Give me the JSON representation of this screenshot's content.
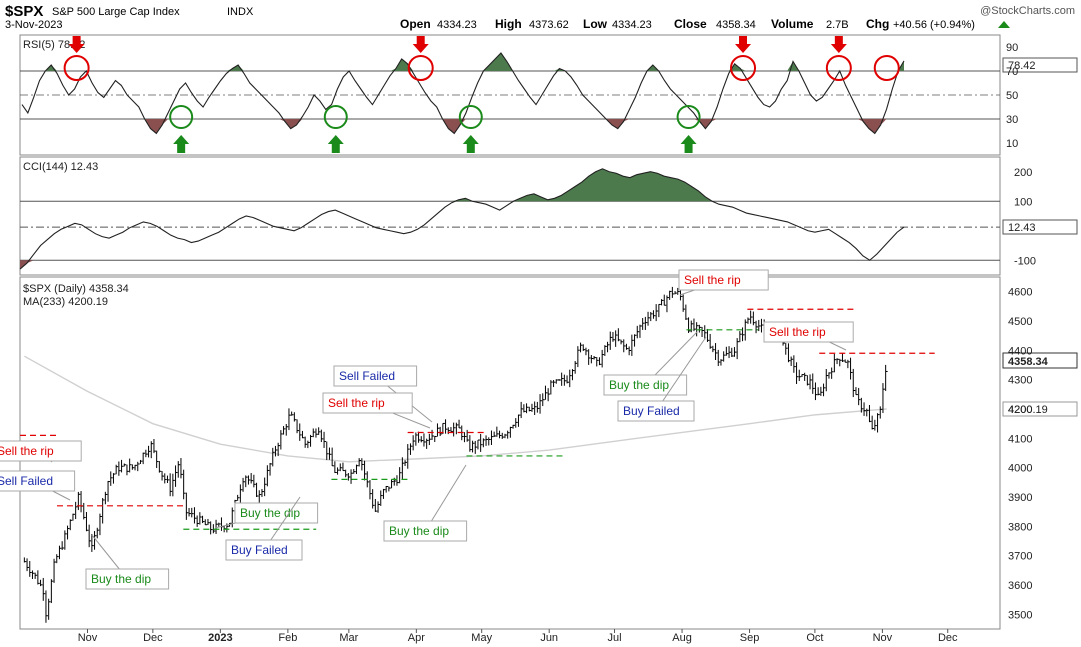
{
  "header": {
    "symbol": "$SPX",
    "name": "S&P 500 Large Cap Index",
    "exchange": "INDX",
    "date": "3-Nov-2023",
    "open_label": "Open",
    "open": "4334.23",
    "high_label": "High",
    "high": "4373.62",
    "low_label": "Low",
    "low": "4334.23",
    "close_label": "Close",
    "close": "4358.34",
    "volume_label": "Volume",
    "volume": "2.7B",
    "chg_label": "Chg",
    "chg": "+40.56 (+0.94%)",
    "source": "@StockCharts.com"
  },
  "colors": {
    "up_shade": "#4d7a4d",
    "down_shade": "#8a5050",
    "sell_marker": "#e00000",
    "buy_marker": "#1a8a1a",
    "ma_line": "#d0d0d0",
    "price_bars": "#000000"
  },
  "chart_data": [
    {
      "type": "line",
      "panel": "rsi",
      "title": "RSI(5) 78.42",
      "ylim": [
        0,
        100
      ],
      "yticks": [
        90,
        70,
        50,
        30,
        10
      ],
      "last_value": "78.42",
      "reference_lines": [
        70,
        50,
        30
      ],
      "values": [
        42,
        35,
        48,
        62,
        70,
        75,
        68,
        58,
        50,
        55,
        65,
        70,
        60,
        52,
        48,
        55,
        62,
        58,
        50,
        45,
        40,
        30,
        22,
        18,
        25,
        35,
        45,
        55,
        60,
        52,
        45,
        40,
        48,
        55,
        62,
        68,
        72,
        75,
        68,
        60,
        55,
        50,
        45,
        40,
        35,
        28,
        22,
        25,
        32,
        40,
        50,
        45,
        38,
        42,
        55,
        65,
        70,
        62,
        55,
        48,
        42,
        50,
        58,
        66,
        72,
        80,
        76,
        68,
        60,
        52,
        45,
        40,
        30,
        22,
        18,
        25,
        35,
        48,
        60,
        70,
        75,
        80,
        85,
        78,
        70,
        62,
        55,
        48,
        42,
        50,
        58,
        66,
        72,
        70,
        65,
        58,
        50,
        45,
        40,
        35,
        30,
        25,
        22,
        28,
        38,
        48,
        60,
        70,
        75,
        70,
        62,
        55,
        50,
        45,
        40,
        35,
        28,
        22,
        28,
        40,
        55,
        68,
        76,
        72,
        64,
        56,
        48,
        42,
        40,
        45,
        55,
        62,
        78,
        70,
        60,
        50,
        45,
        48,
        55,
        62,
        70,
        58,
        48,
        38,
        28,
        22,
        18,
        25,
        38,
        55,
        70,
        78.42
      ],
      "sell_signals_x": [
        "2022-10-27",
        "2023-04-03",
        "2023-08-29",
        "2023-10-12",
        "2023-11-03"
      ],
      "buy_signals_x": [
        "2022-12-14",
        "2023-02-23",
        "2023-04-26",
        "2023-08-04"
      ]
    },
    {
      "type": "line",
      "panel": "cci",
      "title": "CCI(144) 12.43",
      "ylim": [
        -150,
        250
      ],
      "yticks": [
        200,
        100,
        -100
      ],
      "last_value": "12.43",
      "reference_lines": [
        100,
        12.43,
        -100
      ],
      "values": [
        -130,
        -110,
        -80,
        -50,
        -30,
        -10,
        5,
        15,
        25,
        20,
        5,
        -10,
        -20,
        -25,
        -15,
        -5,
        10,
        20,
        30,
        25,
        15,
        0,
        -15,
        -25,
        -30,
        -40,
        -35,
        -25,
        -15,
        -5,
        10,
        25,
        40,
        50,
        45,
        35,
        25,
        15,
        10,
        5,
        0,
        10,
        25,
        40,
        55,
        65,
        70,
        60,
        50,
        40,
        30,
        20,
        10,
        5,
        0,
        -5,
        -10,
        -5,
        5,
        20,
        40,
        60,
        80,
        95,
        105,
        110,
        100,
        95,
        90,
        80,
        70,
        85,
        100,
        110,
        120,
        125,
        115,
        105,
        110,
        120,
        135,
        150,
        165,
        185,
        200,
        210,
        200,
        195,
        185,
        180,
        190,
        195,
        200,
        195,
        185,
        180,
        175,
        165,
        150,
        135,
        115,
        100,
        90,
        85,
        80,
        70,
        60,
        55,
        50,
        45,
        40,
        35,
        30,
        20,
        10,
        0,
        -5,
        0,
        5,
        -10,
        -25,
        -40,
        -60,
        -85,
        -100,
        -80,
        -55,
        -30,
        -5,
        12.43
      ]
    },
    {
      "type": "line",
      "panel": "price",
      "title": "$SPX (Daily) 4358.34",
      "ma_title": "MA(233) 4200.19",
      "ylim": [
        3450,
        4650
      ],
      "yticks": [
        4600,
        4500,
        4400,
        4300,
        4200,
        4100,
        4000,
        3900,
        3800,
        3700,
        3600,
        3500
      ],
      "last_value": "4358.34",
      "ma_last_value": "4200.19",
      "x_months": [
        "Nov",
        "Dec",
        "2023",
        "Feb",
        "Mar",
        "Apr",
        "May",
        "Jun",
        "Jul",
        "Aug",
        "Sep",
        "Oct",
        "Nov",
        "Dec"
      ],
      "close_series": [
        {
          "x": "2022-10-03",
          "y": 3680
        },
        {
          "x": "2022-10-07",
          "y": 3640
        },
        {
          "x": "2022-10-12",
          "y": 3580
        },
        {
          "x": "2022-10-13",
          "y": 3500
        },
        {
          "x": "2022-10-17",
          "y": 3680
        },
        {
          "x": "2022-10-21",
          "y": 3750
        },
        {
          "x": "2022-10-28",
          "y": 3900
        },
        {
          "x": "2022-11-03",
          "y": 3720
        },
        {
          "x": "2022-11-10",
          "y": 3950
        },
        {
          "x": "2022-11-15",
          "y": 4000
        },
        {
          "x": "2022-11-22",
          "y": 4000
        },
        {
          "x": "2022-11-30",
          "y": 4080
        },
        {
          "x": "2022-12-05",
          "y": 3980
        },
        {
          "x": "2022-12-09",
          "y": 3930
        },
        {
          "x": "2022-12-13",
          "y": 4020
        },
        {
          "x": "2022-12-16",
          "y": 3850
        },
        {
          "x": "2022-12-22",
          "y": 3820
        },
        {
          "x": "2022-12-28",
          "y": 3790
        },
        {
          "x": "2023-01-05",
          "y": 3810
        },
        {
          "x": "2023-01-12",
          "y": 3980
        },
        {
          "x": "2023-01-19",
          "y": 3900
        },
        {
          "x": "2023-01-26",
          "y": 4060
        },
        {
          "x": "2023-02-02",
          "y": 4180
        },
        {
          "x": "2023-02-09",
          "y": 4080
        },
        {
          "x": "2023-02-15",
          "y": 4140
        },
        {
          "x": "2023-02-22",
          "y": 3990
        },
        {
          "x": "2023-03-02",
          "y": 3980
        },
        {
          "x": "2023-03-06",
          "y": 4040
        },
        {
          "x": "2023-03-13",
          "y": 3850
        },
        {
          "x": "2023-03-17",
          "y": 3920
        },
        {
          "x": "2023-03-24",
          "y": 3970
        },
        {
          "x": "2023-03-31",
          "y": 4110
        },
        {
          "x": "2023-04-06",
          "y": 4100
        },
        {
          "x": "2023-04-14",
          "y": 4140
        },
        {
          "x": "2023-04-21",
          "y": 4130
        },
        {
          "x": "2023-04-25",
          "y": 4070
        },
        {
          "x": "2023-05-03",
          "y": 4090
        },
        {
          "x": "2023-05-12",
          "y": 4120
        },
        {
          "x": "2023-05-19",
          "y": 4190
        },
        {
          "x": "2023-05-26",
          "y": 4200
        },
        {
          "x": "2023-06-02",
          "y": 4280
        },
        {
          "x": "2023-06-09",
          "y": 4300
        },
        {
          "x": "2023-06-16",
          "y": 4420
        },
        {
          "x": "2023-06-23",
          "y": 4350
        },
        {
          "x": "2023-06-30",
          "y": 4450
        },
        {
          "x": "2023-07-07",
          "y": 4400
        },
        {
          "x": "2023-07-14",
          "y": 4500
        },
        {
          "x": "2023-07-21",
          "y": 4540
        },
        {
          "x": "2023-07-27",
          "y": 4600
        },
        {
          "x": "2023-07-31",
          "y": 4590
        },
        {
          "x": "2023-08-04",
          "y": 4480
        },
        {
          "x": "2023-08-11",
          "y": 4460
        },
        {
          "x": "2023-08-18",
          "y": 4370
        },
        {
          "x": "2023-08-25",
          "y": 4400
        },
        {
          "x": "2023-09-01",
          "y": 4520
        },
        {
          "x": "2023-09-08",
          "y": 4460
        },
        {
          "x": "2023-09-15",
          "y": 4450
        },
        {
          "x": "2023-09-22",
          "y": 4320
        },
        {
          "x": "2023-09-29",
          "y": 4290
        },
        {
          "x": "2023-10-03",
          "y": 4230
        },
        {
          "x": "2023-10-06",
          "y": 4310
        },
        {
          "x": "2023-10-12",
          "y": 4380
        },
        {
          "x": "2023-10-16",
          "y": 4360
        },
        {
          "x": "2023-10-20",
          "y": 4230
        },
        {
          "x": "2023-10-25",
          "y": 4190
        },
        {
          "x": "2023-10-27",
          "y": 4120
        },
        {
          "x": "2023-10-31",
          "y": 4190
        },
        {
          "x": "2023-11-02",
          "y": 4320
        },
        {
          "x": "2023-11-03",
          "y": 4358.34
        }
      ],
      "ma_series": [
        {
          "x": "2022-10-03",
          "y": 4380
        },
        {
          "x": "2022-11-01",
          "y": 4260
        },
        {
          "x": "2022-12-01",
          "y": 4150
        },
        {
          "x": "2023-01-01",
          "y": 4080
        },
        {
          "x": "2023-02-01",
          "y": 4040
        },
        {
          "x": "2023-03-01",
          "y": 4020
        },
        {
          "x": "2023-04-01",
          "y": 4030
        },
        {
          "x": "2023-05-01",
          "y": 4040
        },
        {
          "x": "2023-06-01",
          "y": 4060
        },
        {
          "x": "2023-07-01",
          "y": 4090
        },
        {
          "x": "2023-08-01",
          "y": 4120
        },
        {
          "x": "2023-09-01",
          "y": 4150
        },
        {
          "x": "2023-10-01",
          "y": 4180
        },
        {
          "x": "2023-11-03",
          "y": 4200.19
        }
      ],
      "levels": [
        {
          "kind": "sell",
          "y": 4110,
          "x0": "2022-10-01",
          "x1": "2022-10-19"
        },
        {
          "kind": "sell",
          "y": 3870,
          "x0": "2022-10-18",
          "x1": "2022-12-16"
        },
        {
          "kind": "buy",
          "y": 3790,
          "x0": "2022-12-15",
          "x1": "2023-02-14"
        },
        {
          "kind": "buy",
          "y": 3960,
          "x0": "2023-02-21",
          "x1": "2023-03-28"
        },
        {
          "kind": "sell",
          "y": 4120,
          "x0": "2023-03-28",
          "x1": "2023-05-03"
        },
        {
          "kind": "buy",
          "y": 4040,
          "x0": "2023-04-24",
          "x1": "2023-06-08"
        },
        {
          "kind": "buy",
          "y": 4470,
          "x0": "2023-08-03",
          "x1": "2023-09-05"
        },
        {
          "kind": "sell",
          "y": 4540,
          "x0": "2023-08-31",
          "x1": "2023-10-20"
        },
        {
          "kind": "sell",
          "y": 4390,
          "x0": "2023-10-03",
          "x1": "2023-11-25"
        }
      ]
    }
  ],
  "annotations": [
    {
      "text": "Sell the rip",
      "kind": "sell"
    },
    {
      "text": "Sell Failed",
      "kind": "failed"
    },
    {
      "text": "Buy the dip",
      "kind": "buy"
    },
    {
      "text": "Buy the dip",
      "kind": "buy"
    },
    {
      "text": "Buy Failed",
      "kind": "failed"
    },
    {
      "text": "Sell Failed",
      "kind": "failed"
    },
    {
      "text": "Sell the rip",
      "kind": "sell"
    },
    {
      "text": "Buy the dip",
      "kind": "buy"
    },
    {
      "text": "Sell the rip",
      "kind": "sell"
    },
    {
      "text": "Buy the dip",
      "kind": "buy"
    },
    {
      "text": "Buy Failed",
      "kind": "failed"
    },
    {
      "text": "Sell the rip",
      "kind": "sell"
    }
  ]
}
